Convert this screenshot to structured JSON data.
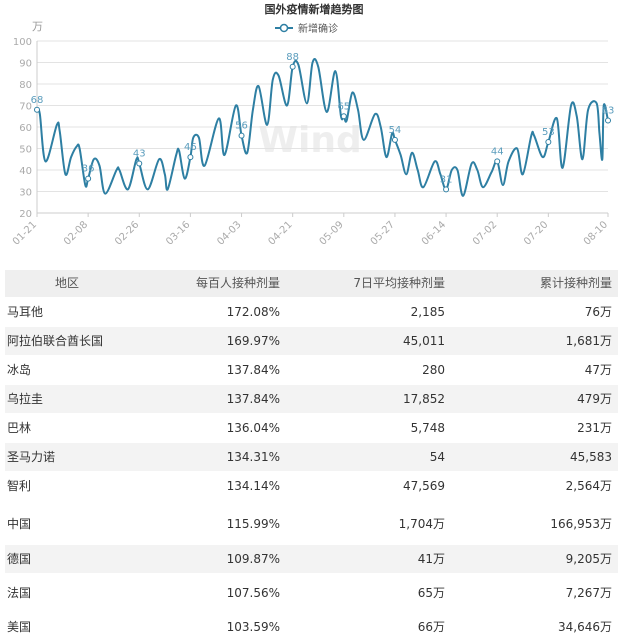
{
  "chart_data": {
    "type": "line",
    "title": "国外疫情新增趋势图",
    "ylabel": "万",
    "ylim": [
      20,
      100
    ],
    "yticks": [
      20,
      30,
      40,
      50,
      60,
      70,
      80,
      90,
      100
    ],
    "grid": true,
    "legend": {
      "position": "top-center",
      "entries": [
        "新增确诊"
      ]
    },
    "watermark": "Wind",
    "xlim": [
      0,
      201
    ],
    "xticks": [
      {
        "day": 0,
        "label": "01-21"
      },
      {
        "day": 18,
        "label": "02-08"
      },
      {
        "day": 36,
        "label": "02-26"
      },
      {
        "day": 54,
        "label": "03-16"
      },
      {
        "day": 72,
        "label": "04-03"
      },
      {
        "day": 90,
        "label": "04-21"
      },
      {
        "day": 108,
        "label": "05-09"
      },
      {
        "day": 126,
        "label": "05-27"
      },
      {
        "day": 144,
        "label": "06-14"
      },
      {
        "day": 162,
        "label": "07-02"
      },
      {
        "day": 180,
        "label": "07-20"
      },
      {
        "day": 201,
        "label": "08-10"
      }
    ],
    "series": [
      {
        "name": "新增确诊",
        "color": "#2e7fa3",
        "x": [
          0,
          1,
          3,
          7,
          8,
          10,
          12,
          14,
          15,
          17,
          18,
          20,
          22,
          24,
          28,
          29,
          32,
          35,
          36,
          39,
          43,
          45,
          46,
          49,
          50,
          52,
          54,
          55,
          57,
          59,
          64,
          66,
          70,
          72,
          74,
          76,
          78,
          81,
          83,
          85,
          88,
          90,
          92,
          95,
          97,
          99,
          102,
          105,
          107,
          108,
          109,
          111,
          113,
          115,
          119,
          121,
          123,
          125,
          126,
          128,
          130,
          132,
          134,
          136,
          140,
          142,
          144,
          146,
          148,
          150,
          153,
          155,
          157,
          160,
          162,
          164,
          166,
          169,
          171,
          174,
          175,
          178,
          180,
          183,
          185,
          188,
          190,
          192,
          194,
          197,
          198,
          199,
          199.5,
          201
        ],
        "y": [
          68,
          66,
          44,
          61,
          58,
          38,
          46,
          51,
          50,
          33,
          36,
          45,
          42,
          29,
          40,
          40,
          31,
          45,
          43,
          31,
          45,
          38,
          31,
          47,
          49,
          36,
          46,
          55,
          55,
          42,
          64,
          47,
          70,
          56,
          48,
          68,
          79,
          61,
          82,
          84,
          70,
          88,
          89,
          71,
          90,
          88,
          67,
          86,
          65,
          65,
          63,
          76,
          68,
          54,
          66,
          60,
          46,
          57,
          54,
          47,
          38,
          48,
          40,
          32,
          44,
          38,
          31,
          40,
          40,
          28,
          43,
          40,
          32,
          39,
          44,
          33,
          44,
          50,
          38,
          56,
          56,
          46,
          53,
          64,
          41,
          70,
          65,
          45,
          68,
          71,
          57,
          45,
          70,
          63
        ]
      }
    ],
    "data_labels": [
      {
        "day": 0,
        "value": 68
      },
      {
        "day": 18,
        "value": 36
      },
      {
        "day": 36,
        "value": 43
      },
      {
        "day": 54,
        "value": 46
      },
      {
        "day": 72,
        "value": 56
      },
      {
        "day": 90,
        "value": 88
      },
      {
        "day": 108,
        "value": 65
      },
      {
        "day": 126,
        "value": 54
      },
      {
        "day": 144,
        "value": 31
      },
      {
        "day": 162,
        "value": 44
      },
      {
        "day": 180,
        "value": 53
      },
      {
        "day": 201,
        "value": 63
      }
    ]
  },
  "table": {
    "headers": [
      "地区",
      "每百人接种剂量",
      "7日平均接种剂量",
      "累计接种剂量"
    ],
    "rows": [
      [
        "马耳他",
        "172.08%",
        "2,185",
        "76万"
      ],
      [
        "阿拉伯联合酋长国",
        "169.97%",
        "45,011",
        "1,681万"
      ],
      [
        "冰岛",
        "137.84%",
        "280",
        "47万"
      ],
      [
        "乌拉圭",
        "137.84%",
        "17,852",
        "479万"
      ],
      [
        "巴林",
        "136.04%",
        "5,748",
        "231万"
      ],
      [
        "圣马力诺",
        "134.31%",
        "54",
        "45,583"
      ],
      [
        "智利",
        "134.14%",
        "47,569",
        "2,564万"
      ],
      [
        "中国",
        "115.99%",
        "1,704万",
        "166,953万"
      ],
      [
        "德国",
        "109.87%",
        "41万",
        "9,205万"
      ],
      [
        "法国",
        "107.56%",
        "65万",
        "7,267万"
      ],
      [
        "美国",
        "103.59%",
        "66万",
        "34,646万"
      ]
    ]
  }
}
